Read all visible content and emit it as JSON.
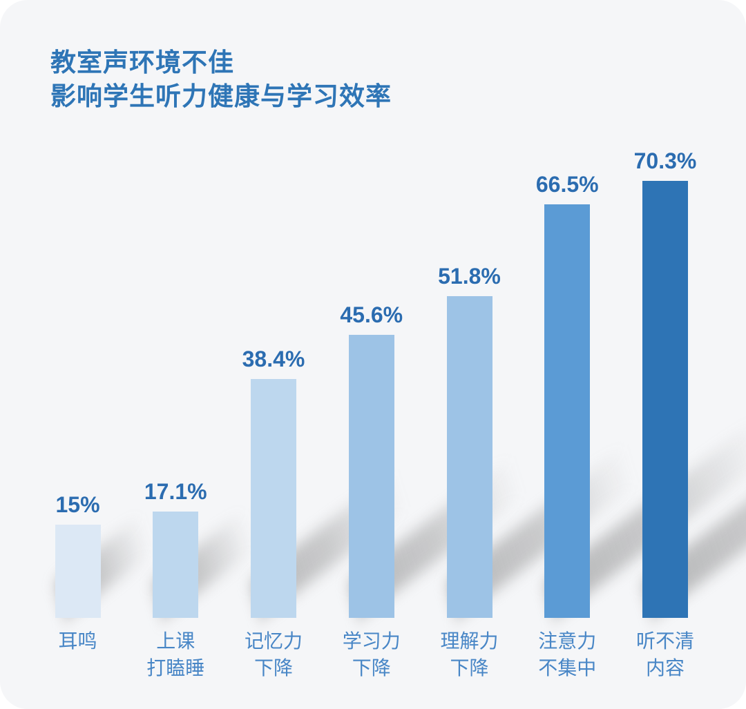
{
  "title": {
    "line1": "教室声环境不佳",
    "line2": "影响学生听力健康与学习效率"
  },
  "colors": {
    "card_background": "#f5f6f8",
    "title_text": "#2e75b6",
    "value_text": "#2b6cb0",
    "category_text": "#4886c6",
    "shadow": "#787878"
  },
  "chart_data": {
    "type": "bar",
    "title": "教室声环境不佳 影响学生听力健康与学习效率",
    "categories": [
      "耳鸣",
      "上课\n打瞌睡",
      "记忆力\n下降",
      "学习力\n下降",
      "理解力\n下降",
      "注意力\n不集中",
      "听不清\n内容"
    ],
    "values": [
      15,
      17.1,
      38.4,
      45.6,
      51.8,
      66.5,
      70.3
    ],
    "value_labels": [
      "15%",
      "17.1%",
      "38.4%",
      "45.6%",
      "51.8%",
      "66.5%",
      "70.3%"
    ],
    "bar_colors": [
      "#dce8f5",
      "#bdd7ee",
      "#bdd7ee",
      "#9dc3e6",
      "#9dc3e6",
      "#5b9bd5",
      "#2e74b5"
    ],
    "xlabel": "",
    "ylabel": "",
    "ylim": [
      0,
      77
    ],
    "grid": false,
    "legend": "none",
    "unit": "%"
  }
}
